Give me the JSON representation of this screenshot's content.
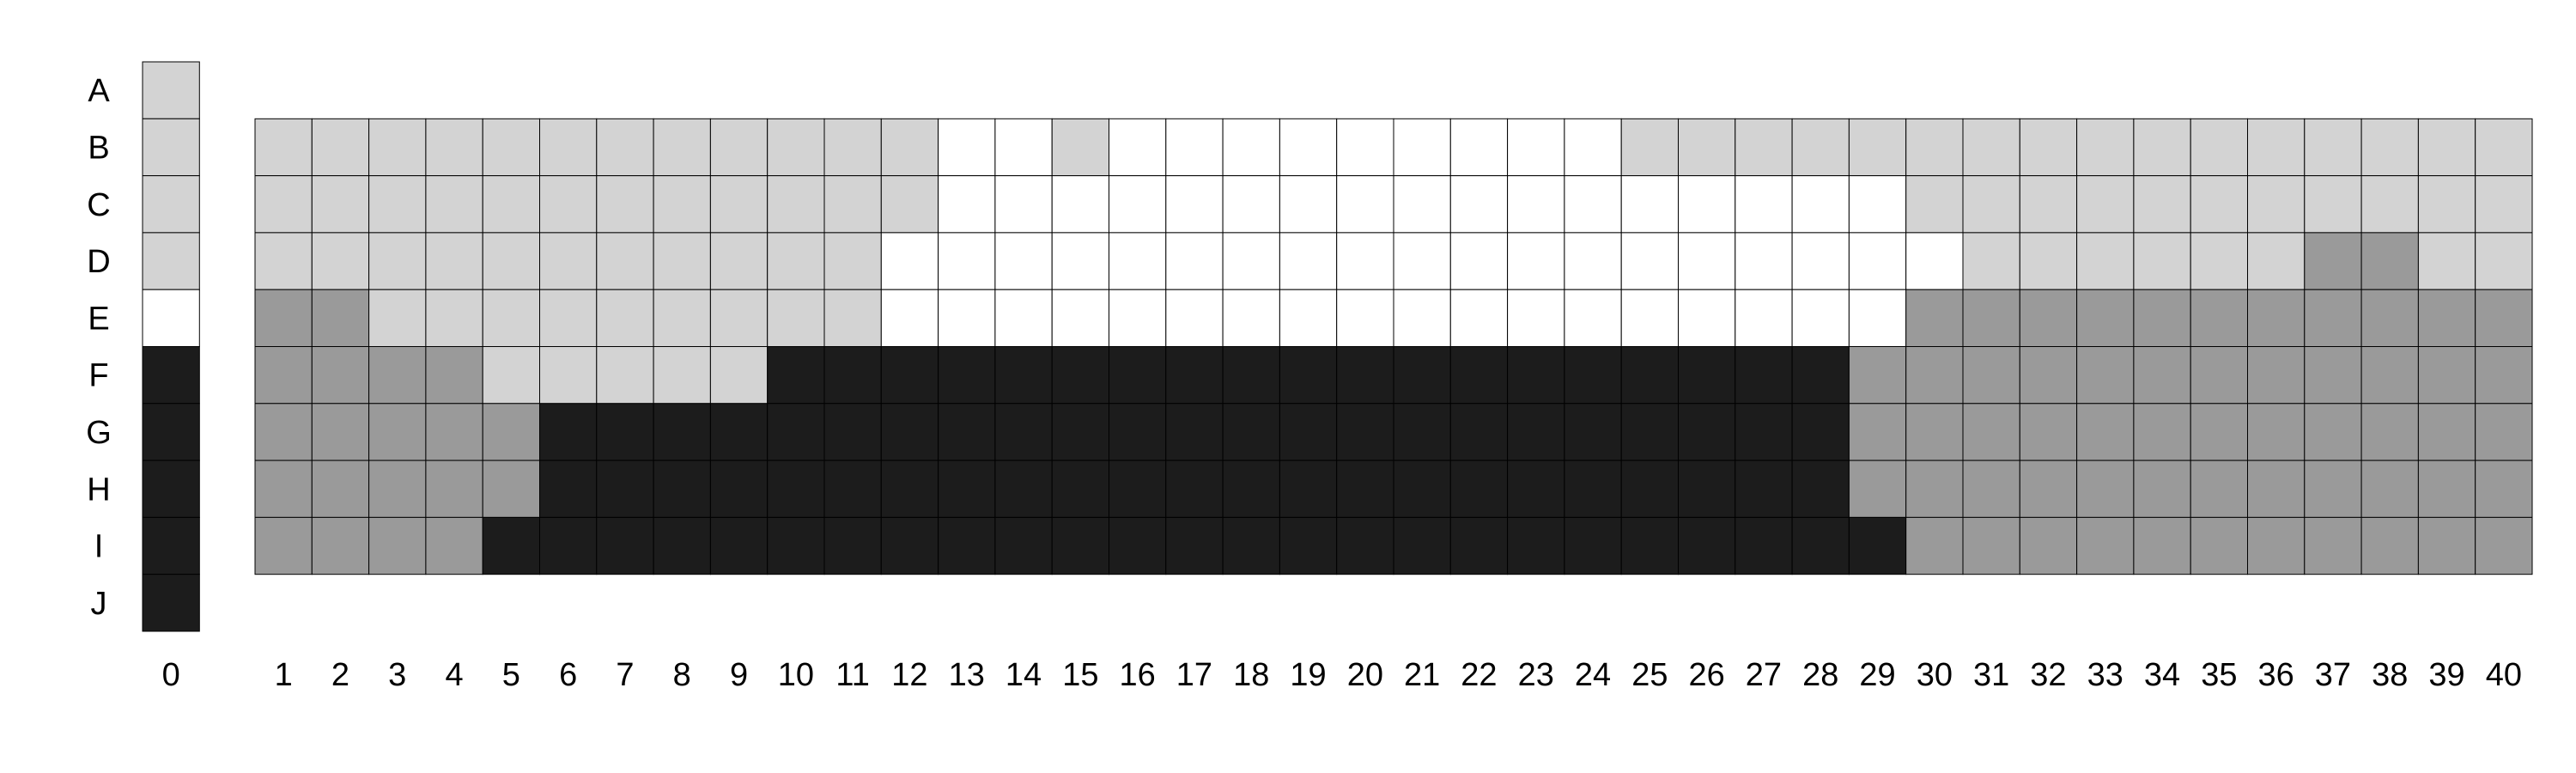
{
  "chart_data": {
    "type": "heatmap",
    "title": "",
    "row_labels": [
      "A",
      "B",
      "C",
      "D",
      "E",
      "F",
      "G",
      "H",
      "I",
      "J"
    ],
    "column_labels": [
      "0",
      "1",
      "2",
      "3",
      "4",
      "5",
      "6",
      "7",
      "8",
      "9",
      "10",
      "11",
      "12",
      "13",
      "14",
      "15",
      "16",
      "17",
      "18",
      "19",
      "20",
      "21",
      "22",
      "23",
      "24",
      "25",
      "26",
      "27",
      "28",
      "29",
      "30",
      "31",
      "32",
      "33",
      "34",
      "35",
      "36",
      "37",
      "38",
      "39",
      "40"
    ],
    "color_levels": {
      "0": "#ffffff",
      "1": "#d3d3d3",
      "2": "#9a9a9a",
      "3": "#1c1c1c"
    },
    "column_0_rows": [
      "A",
      "B",
      "C",
      "D",
      "E",
      "F",
      "G",
      "H",
      "I",
      "J"
    ],
    "columns_1_40_rows": [
      "B",
      "C",
      "D",
      "E",
      "F",
      "G",
      "H",
      "I"
    ],
    "column_0_values": [
      1,
      1,
      1,
      1,
      0,
      3,
      3,
      3,
      3,
      3
    ],
    "grid_rows": {
      "B": [
        1,
        1,
        1,
        1,
        1,
        1,
        1,
        1,
        1,
        1,
        1,
        1,
        0,
        0,
        1,
        0,
        0,
        0,
        0,
        0,
        0,
        0,
        0,
        0,
        1,
        1,
        1,
        1,
        1,
        1,
        1,
        1,
        1,
        1,
        1,
        1,
        1,
        1,
        1,
        1
      ],
      "C": [
        1,
        1,
        1,
        1,
        1,
        1,
        1,
        1,
        1,
        1,
        1,
        1,
        0,
        0,
        0,
        0,
        0,
        0,
        0,
        0,
        0,
        0,
        0,
        0,
        0,
        0,
        0,
        0,
        0,
        1,
        1,
        1,
        1,
        1,
        1,
        1,
        1,
        1,
        1,
        1
      ],
      "D": [
        1,
        1,
        1,
        1,
        1,
        1,
        1,
        1,
        1,
        1,
        1,
        0,
        0,
        0,
        0,
        0,
        0,
        0,
        0,
        0,
        0,
        0,
        0,
        0,
        0,
        0,
        0,
        0,
        0,
        0,
        1,
        1,
        1,
        1,
        1,
        1,
        2,
        2,
        1,
        1
      ],
      "E": [
        2,
        2,
        1,
        1,
        1,
        1,
        1,
        1,
        1,
        1,
        1,
        0,
        0,
        0,
        0,
        0,
        0,
        0,
        0,
        0,
        0,
        0,
        0,
        0,
        0,
        0,
        0,
        0,
        0,
        2,
        2,
        2,
        2,
        2,
        2,
        2,
        2,
        2,
        2,
        2
      ],
      "F": [
        2,
        2,
        2,
        2,
        1,
        1,
        1,
        1,
        1,
        3,
        3,
        3,
        3,
        3,
        3,
        3,
        3,
        3,
        3,
        3,
        3,
        3,
        3,
        3,
        3,
        3,
        3,
        3,
        2,
        2,
        2,
        2,
        2,
        2,
        2,
        2,
        2,
        2,
        2,
        2
      ],
      "G": [
        2,
        2,
        2,
        2,
        2,
        3,
        3,
        3,
        3,
        3,
        3,
        3,
        3,
        3,
        3,
        3,
        3,
        3,
        3,
        3,
        3,
        3,
        3,
        3,
        3,
        3,
        3,
        3,
        2,
        2,
        2,
        2,
        2,
        2,
        2,
        2,
        2,
        2,
        2,
        2
      ],
      "H": [
        2,
        2,
        2,
        2,
        2,
        3,
        3,
        3,
        3,
        3,
        3,
        3,
        3,
        3,
        3,
        3,
        3,
        3,
        3,
        3,
        3,
        3,
        3,
        3,
        3,
        3,
        3,
        3,
        2,
        2,
        2,
        2,
        2,
        2,
        2,
        2,
        2,
        2,
        2,
        2
      ],
      "I": [
        2,
        2,
        2,
        2,
        3,
        3,
        3,
        3,
        3,
        3,
        3,
        3,
        3,
        3,
        3,
        3,
        3,
        3,
        3,
        3,
        3,
        3,
        3,
        3,
        3,
        3,
        3,
        3,
        3,
        2,
        2,
        2,
        2,
        2,
        2,
        2,
        2,
        2,
        2,
        2
      ]
    }
  }
}
